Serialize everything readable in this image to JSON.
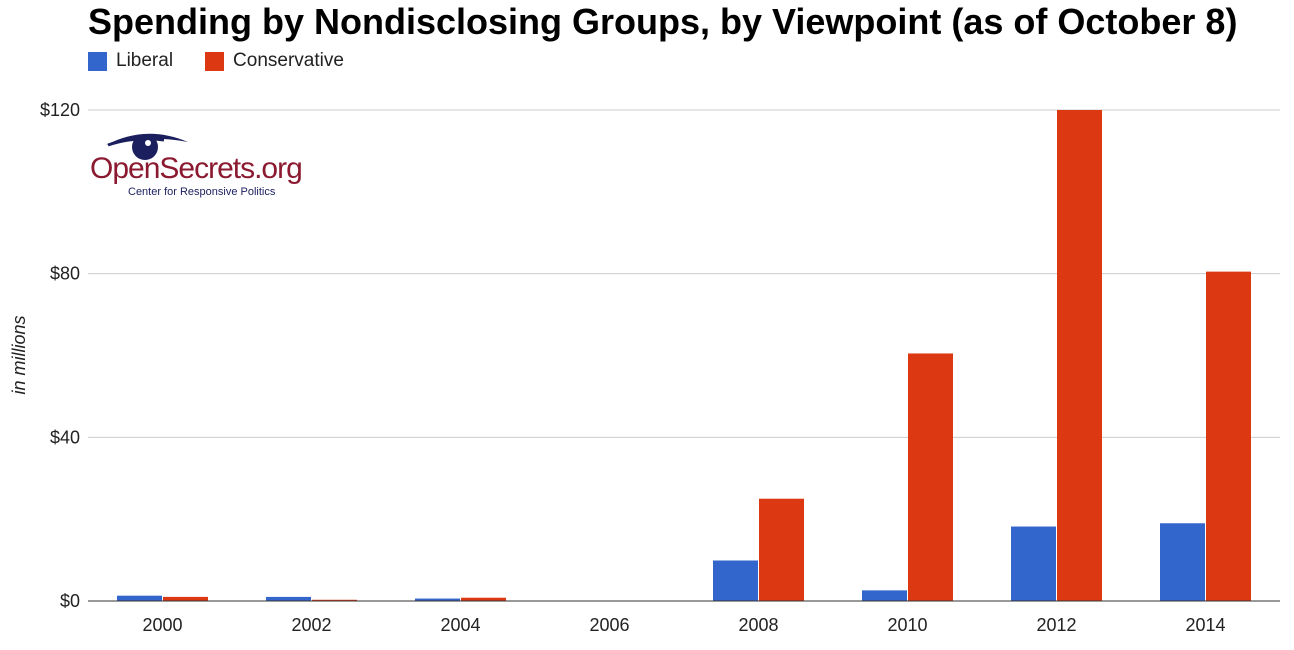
{
  "chart_data": {
    "type": "bar",
    "title": "Spending by Nondisclosing Groups, by Viewpoint (as of October 8)",
    "ylabel": "in millions",
    "xlabel": "",
    "categories": [
      "2000",
      "2002",
      "2004",
      "2006",
      "2008",
      "2010",
      "2012",
      "2014"
    ],
    "series": [
      {
        "name": "Liberal",
        "color": "#3366cc",
        "values": [
          1.3,
          1.0,
          0.6,
          0.1,
          9.9,
          2.6,
          18.2,
          19.0
        ]
      },
      {
        "name": "Conservative",
        "color": "#dc3912",
        "values": [
          1.0,
          0.3,
          0.8,
          0.1,
          25.0,
          60.5,
          120.0,
          80.5
        ]
      }
    ],
    "ylim": [
      0,
      120
    ],
    "yticks": [
      0,
      40,
      80,
      120
    ],
    "ytick_labels": [
      "$0",
      "$40",
      "$80",
      "$120"
    ],
    "grid": true,
    "legend_position": "top-left"
  },
  "logo": {
    "name": "OpenSecrets.org",
    "subtitle": "Center for Responsive Politics",
    "icon": "eye-icon"
  }
}
